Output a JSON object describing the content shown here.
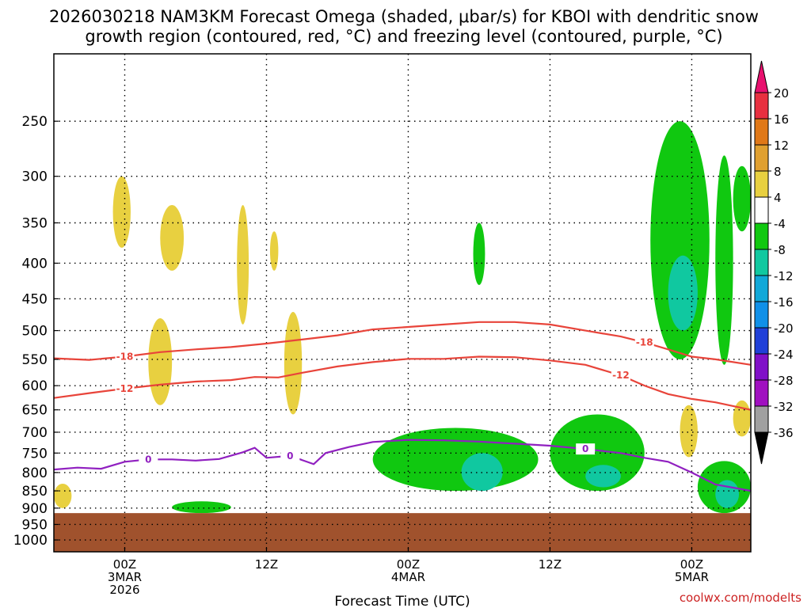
{
  "chart_data": {
    "type": "heatmap",
    "title_line1": "2026030218 NAM3KM Forecast Omega (shaded, μbar/s) for KBOI with dendritic snow",
    "title_line2": "growth region (contoured, red, °C) and freezing level (contoured, purple, °C)",
    "xlabel": "Forecast Time (UTC)",
    "credit": "coolwx.com/modelts",
    "x_range_hours": [
      -6,
      53
    ],
    "x_ticks": [
      {
        "hour": 0,
        "lines": [
          "00Z",
          "3MAR",
          "2026"
        ]
      },
      {
        "hour": 12,
        "lines": [
          "12Z"
        ]
      },
      {
        "hour": 24,
        "lines": [
          "00Z",
          "4MAR"
        ]
      },
      {
        "hour": 36,
        "lines": [
          "12Z"
        ]
      },
      {
        "hour": 48,
        "lines": [
          "00Z",
          "5MAR"
        ]
      }
    ],
    "y_ticks": [
      "250",
      "300",
      "350",
      "400",
      "450",
      "500",
      "550",
      "600",
      "650",
      "700",
      "750",
      "800",
      "850",
      "900",
      "950",
      "1000"
    ],
    "y_log_scale": true,
    "y_range_hpa": [
      200,
      1040
    ],
    "grid": true,
    "colorbar": {
      "labels": [
        "20",
        "16",
        "12",
        "8",
        "4",
        "-4",
        "-8",
        "-12",
        "-16",
        "-20",
        "-24",
        "-28",
        "-32",
        "-36"
      ],
      "colors": [
        "#e8106e",
        "#e83040",
        "#e07818",
        "#e0a030",
        "#e8d040",
        "#ffffff",
        "#10c810",
        "#10c8a0",
        "#10a8d8",
        "#1090e8",
        "#2040d8",
        "#8010c8",
        "#a010c0",
        "#a0a0a0",
        "#000000"
      ]
    },
    "terrain_color": "#a0522d",
    "terrain_top_hpa": 915,
    "contours": [
      {
        "label": "-18",
        "color": "#e8443a",
        "points": [
          [
            -6,
            548
          ],
          [
            -3,
            551
          ],
          [
            0,
            545
          ],
          [
            3,
            537
          ],
          [
            6,
            532
          ],
          [
            9,
            528
          ],
          [
            12,
            522
          ],
          [
            15,
            515
          ],
          [
            18,
            508
          ],
          [
            21,
            498
          ],
          [
            24,
            494
          ],
          [
            27,
            490
          ],
          [
            30,
            486
          ],
          [
            33,
            486
          ],
          [
            36,
            490
          ],
          [
            39,
            500
          ],
          [
            42,
            510
          ],
          [
            44,
            520
          ],
          [
            46,
            532
          ],
          [
            48,
            545
          ],
          [
            50,
            550
          ],
          [
            53,
            560
          ]
        ]
      },
      {
        "label": "-12",
        "color": "#e8443a",
        "points": [
          [
            -6,
            625
          ],
          [
            -3,
            615
          ],
          [
            0,
            606
          ],
          [
            3,
            598
          ],
          [
            6,
            592
          ],
          [
            9,
            589
          ],
          [
            11,
            583
          ],
          [
            13,
            584
          ],
          [
            15,
            575
          ],
          [
            18,
            563
          ],
          [
            21,
            555
          ],
          [
            24,
            549
          ],
          [
            27,
            549
          ],
          [
            30,
            545
          ],
          [
            33,
            546
          ],
          [
            36,
            552
          ],
          [
            39,
            560
          ],
          [
            42,
            580
          ],
          [
            44,
            600
          ],
          [
            46,
            617
          ],
          [
            48,
            627
          ],
          [
            50,
            634
          ],
          [
            53,
            650
          ]
        ]
      },
      {
        "label": "0",
        "color": "#9020c0",
        "points": [
          [
            -6,
            792
          ],
          [
            -4,
            787
          ],
          [
            -2,
            790
          ],
          [
            0,
            772
          ],
          [
            2,
            766
          ],
          [
            4,
            766
          ],
          [
            6,
            769
          ],
          [
            8,
            765
          ],
          [
            10,
            748
          ],
          [
            11,
            737
          ],
          [
            12,
            762
          ],
          [
            14,
            757
          ],
          [
            16,
            778
          ],
          [
            17,
            750
          ],
          [
            19,
            735
          ],
          [
            21,
            723
          ],
          [
            24,
            718
          ],
          [
            27,
            719
          ],
          [
            30,
            722
          ],
          [
            33,
            727
          ],
          [
            36,
            732
          ],
          [
            39,
            740
          ],
          [
            42,
            750
          ],
          [
            44,
            762
          ],
          [
            46,
            772
          ],
          [
            48,
            800
          ],
          [
            50,
            832
          ],
          [
            53,
            850
          ]
        ]
      }
    ],
    "omega_regions": [
      {
        "category": "4..8",
        "color": "#e8d040",
        "x": [
          -1,
          0.5
        ],
        "p": [
          300,
          380
        ]
      },
      {
        "category": "4..8",
        "color": "#e8d040",
        "x": [
          3,
          5
        ],
        "p": [
          330,
          410
        ]
      },
      {
        "category": "4..8",
        "color": "#e8d040",
        "x": [
          9.5,
          10.5
        ],
        "p": [
          330,
          490
        ]
      },
      {
        "category": "4..8",
        "color": "#e8d040",
        "x": [
          12.3,
          13
        ],
        "p": [
          360,
          410
        ]
      },
      {
        "category": "4..8",
        "color": "#e8d040",
        "x": [
          2,
          4
        ],
        "p": [
          480,
          640
        ]
      },
      {
        "category": "4..8",
        "color": "#e8d040",
        "x": [
          13.5,
          15
        ],
        "p": [
          470,
          660
        ]
      },
      {
        "category": "4..8",
        "color": "#e8d040",
        "x": [
          -6,
          -4.5
        ],
        "p": [
          830,
          900
        ]
      },
      {
        "category": "4..8",
        "color": "#e8d040",
        "x": [
          47,
          48.5
        ],
        "p": [
          640,
          760
        ]
      },
      {
        "category": "4..8",
        "color": "#e8d040",
        "x": [
          51.5,
          53
        ],
        "p": [
          630,
          710
        ]
      },
      {
        "category": "-4..-8",
        "color": "#10c810",
        "x": [
          44.5,
          49.5
        ],
        "p": [
          250,
          550
        ]
      },
      {
        "category": "-8..-12",
        "color": "#10c8a0",
        "x": [
          46,
          48.5
        ],
        "p": [
          390,
          500
        ]
      },
      {
        "category": "-4..-8",
        "color": "#10c810",
        "x": [
          50,
          51.5
        ],
        "p": [
          280,
          560
        ]
      },
      {
        "category": "-4..-8",
        "color": "#10c810",
        "x": [
          51.5,
          53
        ],
        "p": [
          290,
          360
        ]
      },
      {
        "category": "-4..-8",
        "color": "#10c810",
        "x": [
          29.5,
          30.5
        ],
        "p": [
          350,
          430
        ]
      },
      {
        "category": "-4..-8",
        "color": "#10c810",
        "x": [
          21,
          35
        ],
        "p": [
          690,
          850
        ]
      },
      {
        "category": "-8..-12",
        "color": "#10c8a0",
        "x": [
          28.5,
          32
        ],
        "p": [
          750,
          850
        ]
      },
      {
        "category": "-4..-8",
        "color": "#10c810",
        "x": [
          36,
          44
        ],
        "p": [
          660,
          850
        ]
      },
      {
        "category": "-8..-12",
        "color": "#10c8a0",
        "x": [
          39,
          42
        ],
        "p": [
          780,
          840
        ]
      },
      {
        "category": "-4..-8",
        "color": "#10c810",
        "x": [
          48.5,
          53
        ],
        "p": [
          770,
          915
        ]
      },
      {
        "category": "-8..-12",
        "color": "#10c8a0",
        "x": [
          50,
          52
        ],
        "p": [
          820,
          900
        ]
      },
      {
        "category": "-4..-8",
        "color": "#10c810",
        "x": [
          4,
          9
        ],
        "p": [
          880,
          915
        ]
      }
    ]
  }
}
